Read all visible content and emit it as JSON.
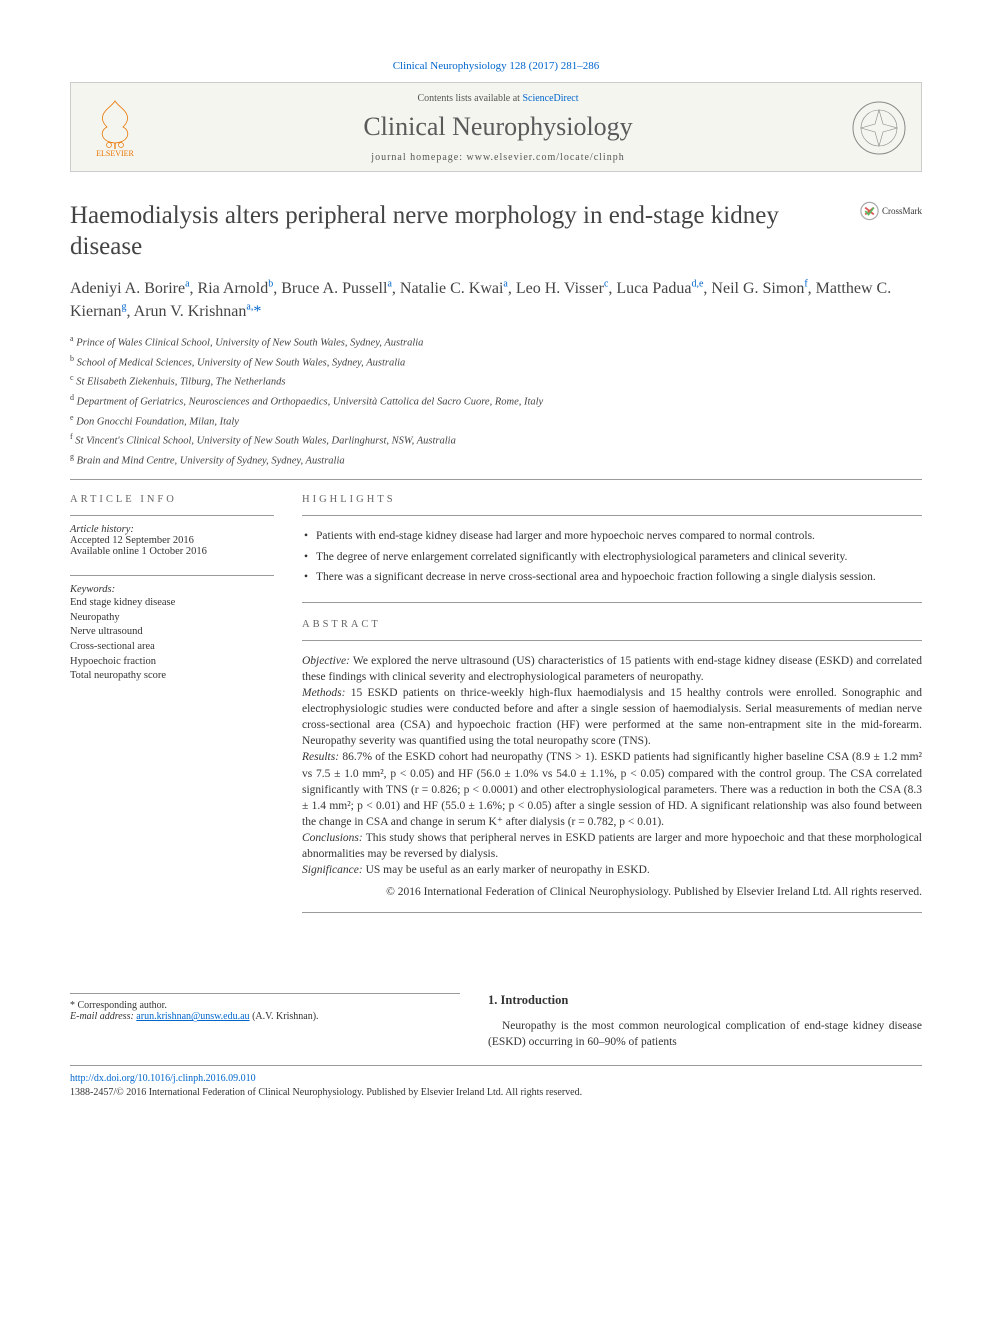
{
  "citation": "Clinical Neurophysiology 128 (2017) 281–286",
  "header": {
    "contents_prefix": "Contents lists available at ",
    "contents_link": "ScienceDirect",
    "journal_name": "Clinical Neurophysiology",
    "homepage_prefix": "journal homepage: ",
    "homepage": "www.elsevier.com/locate/clinph",
    "publisher": "ELSEVIER"
  },
  "article": {
    "title": "Haemodialysis alters peripheral nerve morphology in end-stage kidney disease",
    "crossmark": "CrossMark"
  },
  "authors": [
    {
      "name": "Adeniyi A. Borire",
      "aff": "a"
    },
    {
      "name": "Ria Arnold",
      "aff": "b"
    },
    {
      "name": "Bruce A. Pussell",
      "aff": "a"
    },
    {
      "name": "Natalie C. Kwai",
      "aff": "a"
    },
    {
      "name": "Leo H. Visser",
      "aff": "c"
    },
    {
      "name": "Luca Padua",
      "aff": "d,e"
    },
    {
      "name": "Neil G. Simon",
      "aff": "f"
    },
    {
      "name": "Matthew C. Kiernan",
      "aff": "g"
    },
    {
      "name": "Arun V. Krishnan",
      "aff": "a,",
      "corr": true
    }
  ],
  "affiliations": [
    {
      "key": "a",
      "text": "Prince of Wales Clinical School, University of New South Wales, Sydney, Australia"
    },
    {
      "key": "b",
      "text": "School of Medical Sciences, University of New South Wales, Sydney, Australia"
    },
    {
      "key": "c",
      "text": "St Elisabeth Ziekenhuis, Tilburg, The Netherlands"
    },
    {
      "key": "d",
      "text": "Department of Geriatrics, Neurosciences and Orthopaedics, Università Cattolica del Sacro Cuore, Rome, Italy"
    },
    {
      "key": "e",
      "text": "Don Gnocchi Foundation, Milan, Italy"
    },
    {
      "key": "f",
      "text": "St Vincent's Clinical School, University of New South Wales, Darlinghurst, NSW, Australia"
    },
    {
      "key": "g",
      "text": "Brain and Mind Centre, University of Sydney, Sydney, Australia"
    }
  ],
  "info": {
    "label": "ARTICLE INFO",
    "history_label": "Article history:",
    "accepted": "Accepted 12 September 2016",
    "online": "Available online 1 October 2016",
    "keywords_label": "Keywords:",
    "keywords": [
      "End stage kidney disease",
      "Neuropathy",
      "Nerve ultrasound",
      "Cross-sectional area",
      "Hypoechoic fraction",
      "Total neuropathy score"
    ]
  },
  "highlights": {
    "label": "HIGHLIGHTS",
    "items": [
      "Patients with end-stage kidney disease had larger and more hypoechoic nerves compared to normal controls.",
      "The degree of nerve enlargement correlated significantly with electrophysiological parameters and clinical severity.",
      "There was a significant decrease in nerve cross-sectional area and hypoechoic fraction following a single dialysis session."
    ]
  },
  "abstract": {
    "label": "ABSTRACT",
    "sections": [
      {
        "label": "Objective:",
        "text": " We explored the nerve ultrasound (US) characteristics of 15 patients with end-stage kidney disease (ESKD) and correlated these findings with clinical severity and electrophysiological parameters of neuropathy."
      },
      {
        "label": "Methods:",
        "text": " 15 ESKD patients on thrice-weekly high-flux haemodialysis and 15 healthy controls were enrolled. Sonographic and electrophysiologic studies were conducted before and after a single session of haemodialysis. Serial measurements of median nerve cross-sectional area (CSA) and hypoechoic fraction (HF) were performed at the same non-entrapment site in the mid-forearm. Neuropathy severity was quantified using the total neuropathy score (TNS)."
      },
      {
        "label": "Results:",
        "text": " 86.7% of the ESKD cohort had neuropathy (TNS > 1). ESKD patients had significantly higher baseline CSA (8.9 ± 1.2 mm² vs 7.5 ± 1.0 mm², p < 0.05) and HF (56.0 ± 1.0% vs 54.0 ± 1.1%, p < 0.05) compared with the control group. The CSA correlated significantly with TNS (r = 0.826; p < 0.0001) and other electrophysiological parameters. There was a reduction in both the CSA (8.3 ± 1.4 mm²; p < 0.01) and HF (55.0 ± 1.6%; p < 0.05) after a single session of HD. A significant relationship was also found between the change in CSA and change in serum K⁺ after dialysis (r = 0.782, p < 0.01)."
      },
      {
        "label": "Conclusions:",
        "text": " This study shows that peripheral nerves in ESKD patients are larger and more hypoechoic and that these morphological abnormalities may be reversed by dialysis."
      },
      {
        "label": "Significance:",
        "text": " US may be useful as an early marker of neuropathy in ESKD."
      }
    ],
    "copyright": "© 2016 International Federation of Clinical Neurophysiology. Published by Elsevier Ireland Ltd. All rights reserved."
  },
  "intro": {
    "heading": "1. Introduction",
    "text": "Neuropathy is the most common neurological complication of end-stage kidney disease (ESKD) occurring in 60–90% of patients"
  },
  "corresponding": {
    "star": "* Corresponding author.",
    "email_label": "E-mail address: ",
    "email": "arun.krishnan@unsw.edu.au",
    "email_suffix": " (A.V. Krishnan)."
  },
  "footer": {
    "doi": "http://dx.doi.org/10.1016/j.clinph.2016.09.010",
    "issn_line": "1388-2457/© 2016 International Federation of Clinical Neurophysiology. Published by Elsevier Ireland Ltd. All rights reserved."
  },
  "colors": {
    "link": "#0066cc",
    "elsevier_orange": "#e87500",
    "text": "#333333",
    "border": "#999999",
    "header_bg": "#f5f5f0"
  }
}
